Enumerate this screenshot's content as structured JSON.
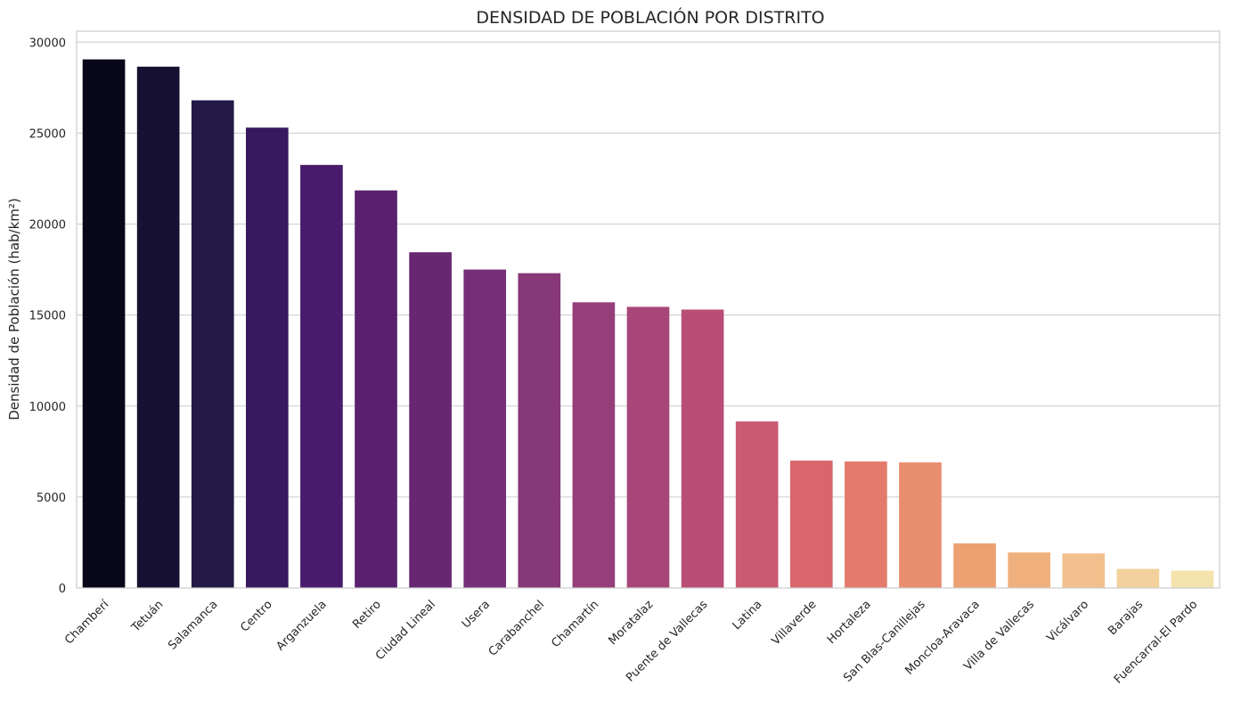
{
  "chart_data": {
    "type": "bar",
    "title": "DENSIDAD DE POBLACIÓN POR DISTRITO",
    "xlabel": "",
    "ylabel": "Densidad de Población (hab/km²)",
    "ylim": [
      0,
      30600
    ],
    "yticks": [
      0,
      5000,
      10000,
      15000,
      20000,
      25000,
      30000
    ],
    "grid": "horizontal",
    "palette": "magma",
    "categories": [
      "Chamberí",
      "Tetuán",
      "Salamanca",
      "Centro",
      "Arganzuela",
      "Retiro",
      "Ciudad Lineal",
      "Usera",
      "Carabanchel",
      "Chamartín",
      "Moratalaz",
      "Puente de Vallecas",
      "Latina",
      "Villaverde",
      "Hortaleza",
      "San Blas-Canillejas",
      "Moncloa-Aravaca",
      "Villa de Vallecas",
      "Vicálvaro",
      "Barajas",
      "Fuencarral-El Pardo"
    ],
    "values": [
      29050,
      28650,
      26800,
      25300,
      23250,
      21850,
      18450,
      17500,
      17300,
      15700,
      15450,
      15300,
      9150,
      7000,
      6950,
      6900,
      2450,
      1950,
      1900,
      1050,
      950
    ],
    "colors": [
      "#08071a",
      "#161132",
      "#231946",
      "#37195f",
      "#491b6c",
      "#58206f",
      "#672772",
      "#752f76",
      "#863879",
      "#963e7a",
      "#a8467a",
      "#b84d76",
      "#c95a71",
      "#d9666c",
      "#e37a6c",
      "#e98d6f",
      "#eda071",
      "#efb07d",
      "#f1c08d",
      "#f2d19c",
      "#f4e3ac"
    ]
  }
}
